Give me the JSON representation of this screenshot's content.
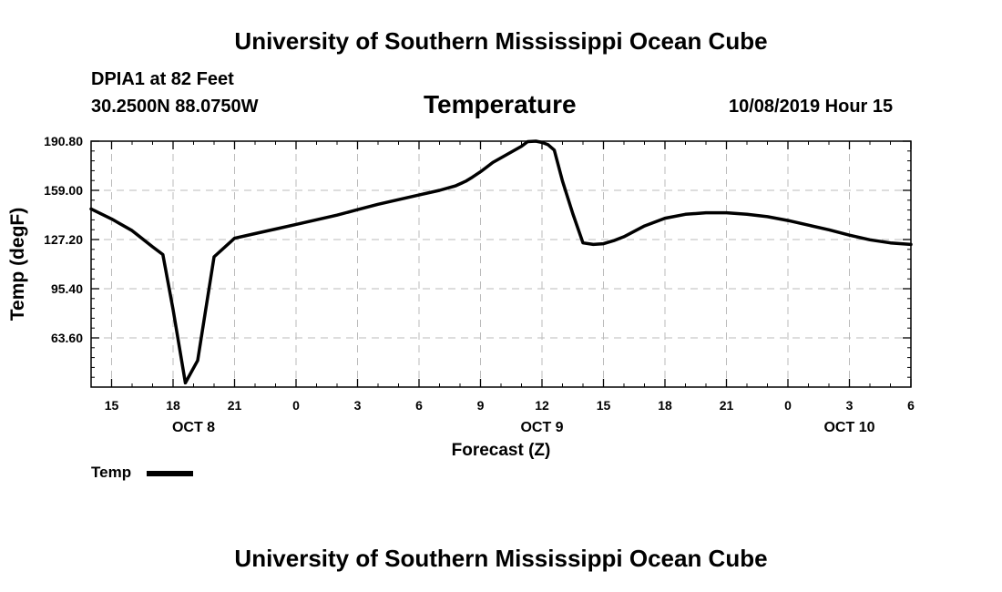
{
  "page": {
    "top_title": "University of Southern Mississippi Ocean Cube",
    "bottom_title": "University of Southern Mississippi Ocean Cube",
    "station": "DPIA1 at 82 Feet",
    "coords": "30.2500N 88.0750W",
    "datetime": "10/08/2019 Hour 15"
  },
  "colors": {
    "line": "#000000",
    "grid": "#bbbbbb",
    "background": "#ffffff"
  },
  "chart_data": {
    "type": "line",
    "title": "Temperature",
    "xlabel": "Forecast (Z)",
    "ylabel": "Temp (degF)",
    "x_unit": "hours since OCT 8 00Z",
    "xlim": [
      14,
      54
    ],
    "ylim": [
      31.8,
      190.8
    ],
    "y_ticks": [
      63.6,
      95.4,
      127.2,
      159.0,
      190.8
    ],
    "y_tick_labels": [
      "63.60",
      "95.40",
      "127.20",
      "159.00",
      "190.80"
    ],
    "x_ticks": [
      15,
      18,
      21,
      24,
      27,
      30,
      33,
      36,
      39,
      42,
      45,
      48,
      51,
      54
    ],
    "x_tick_labels": [
      "15",
      "18",
      "21",
      "0",
      "3",
      "6",
      "9",
      "12",
      "15",
      "18",
      "21",
      "0",
      "3",
      "6"
    ],
    "date_labels": [
      {
        "x": 19,
        "label": "OCT 8"
      },
      {
        "x": 36,
        "label": "OCT 9"
      },
      {
        "x": 51,
        "label": "OCT 10"
      }
    ],
    "grid": true,
    "legend": "bottom-left",
    "series": [
      {
        "name": "Temp",
        "x": [
          14,
          15,
          16,
          17,
          17.5,
          18,
          18.6,
          19.2,
          20.0,
          21,
          22,
          23,
          24,
          25,
          26,
          27,
          28,
          29,
          30,
          31,
          31.8,
          32.3,
          32.6,
          33.0,
          33.3,
          33.6,
          35.0,
          35.3,
          35.7,
          36.0,
          36.3,
          36.6,
          37.0,
          37.5,
          38.0,
          38.5,
          39.0,
          39.5,
          40.0,
          41,
          42,
          43,
          44,
          45,
          46,
          47,
          48,
          49,
          50,
          51,
          52,
          53,
          54
        ],
        "values": [
          147.0,
          140.5,
          133.0,
          122.5,
          117.5,
          82.0,
          34.5,
          49.0,
          116.0,
          128.0,
          131.0,
          134.0,
          137.0,
          140.0,
          143.0,
          146.5,
          150.0,
          153.0,
          156.0,
          159.0,
          162.0,
          165.0,
          167.5,
          171.0,
          174.0,
          177.0,
          187.5,
          190.5,
          190.8,
          190.0,
          188.5,
          185.0,
          165.0,
          144.0,
          125.0,
          124.0,
          124.5,
          126.5,
          129.0,
          136.0,
          141.0,
          143.5,
          144.5,
          144.5,
          143.5,
          142.0,
          139.5,
          136.5,
          133.5,
          130.0,
          127.0,
          125.0,
          124.0
        ]
      }
    ]
  }
}
